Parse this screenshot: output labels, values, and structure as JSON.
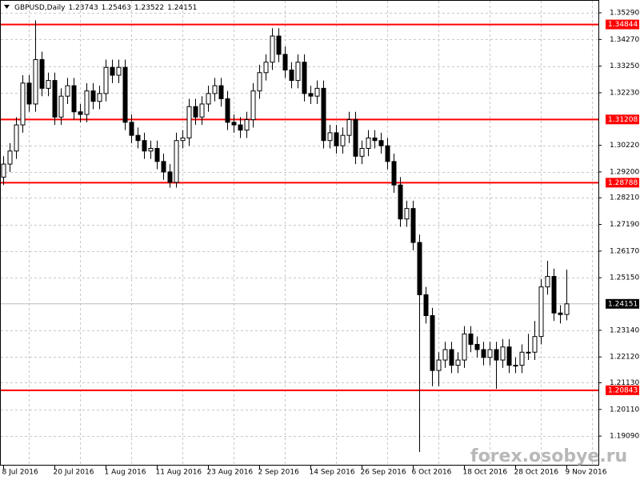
{
  "chart_data": {
    "type": "candlestick",
    "title": "GBPUSD,Daily",
    "watermark": "forex.osobye.ru",
    "categories": [
      "8 Jul 2016",
      null,
      null,
      null,
      null,
      null,
      null,
      null,
      "20 Jul 2016",
      null,
      null,
      null,
      null,
      null,
      null,
      null,
      "1 Aug 2016",
      null,
      null,
      null,
      null,
      null,
      null,
      null,
      "11 Aug 2016",
      null,
      null,
      null,
      null,
      null,
      null,
      null,
      "23 Aug 2016",
      null,
      null,
      null,
      null,
      null,
      null,
      null,
      "2 Sep 2016",
      null,
      null,
      null,
      null,
      null,
      null,
      null,
      "14 Sep 2016",
      null,
      null,
      null,
      null,
      null,
      null,
      null,
      "26 Sep 2016",
      null,
      null,
      null,
      null,
      null,
      null,
      null,
      "6 Oct 2016",
      null,
      null,
      null,
      null,
      null,
      null,
      null,
      "18 Oct 2016",
      null,
      null,
      null,
      null,
      null,
      null,
      null,
      "28 Oct 2016",
      null,
      null,
      null,
      null,
      null,
      null,
      null,
      "9 Nov 2016"
    ],
    "open": [
      1.29,
      1.295,
      1.3,
      1.31,
      1.326,
      1.318,
      1.335,
      1.324,
      1.327,
      1.313,
      1.321,
      1.325,
      1.315,
      1.314,
      1.323,
      1.319,
      1.322,
      1.332,
      1.329,
      1.332,
      1.311,
      1.306,
      1.304,
      1.3,
      1.301,
      1.296,
      1.292,
      1.288,
      1.304,
      1.305,
      1.317,
      1.313,
      1.318,
      1.322,
      1.325,
      1.32,
      1.311,
      1.31,
      1.308,
      1.312,
      1.323,
      1.33,
      1.334,
      1.344,
      1.337,
      1.331,
      1.327,
      1.334,
      1.322,
      1.321,
      1.324,
      1.304,
      1.307,
      1.302,
      1.306,
      1.312,
      1.298,
      1.301,
      1.305,
      1.304,
      1.302,
      1.296,
      1.287,
      1.274,
      1.278,
      1.265,
      1.245,
      1.237,
      1.216,
      1.22,
      1.224,
      1.218,
      1.22,
      1.23,
      1.226,
      1.224,
      1.221,
      1.224,
      1.22,
      1.225,
      1.218,
      1.218,
      1.223,
      1.223,
      1.229,
      1.248,
      1.252,
      1.238,
      1.23743
    ],
    "high": [
      1.298,
      1.303,
      1.313,
      1.329,
      1.329,
      1.35,
      1.338,
      1.33,
      1.33,
      1.324,
      1.328,
      1.328,
      1.318,
      1.326,
      1.326,
      1.325,
      1.335,
      1.335,
      1.335,
      1.335,
      1.314,
      1.309,
      1.307,
      1.304,
      1.304,
      1.299,
      1.295,
      1.307,
      1.308,
      1.32,
      1.32,
      1.321,
      1.325,
      1.328,
      1.328,
      1.323,
      1.314,
      1.313,
      1.315,
      1.326,
      1.333,
      1.337,
      1.347,
      1.347,
      1.34,
      1.334,
      1.337,
      1.337,
      1.325,
      1.327,
      1.327,
      1.31,
      1.31,
      1.309,
      1.315,
      1.315,
      1.304,
      1.308,
      1.308,
      1.307,
      1.305,
      1.299,
      1.29,
      1.281,
      1.281,
      1.268,
      1.248,
      1.24,
      1.223,
      1.227,
      1.227,
      1.223,
      1.233,
      1.233,
      1.229,
      1.227,
      1.227,
      1.227,
      1.228,
      1.228,
      1.221,
      1.226,
      1.23,
      1.235,
      1.251,
      1.258,
      1.255,
      1.241,
      1.25463
    ],
    "low": [
      1.287,
      1.292,
      1.297,
      1.307,
      1.315,
      1.315,
      1.321,
      1.321,
      1.31,
      1.31,
      1.318,
      1.312,
      1.311,
      1.311,
      1.316,
      1.316,
      1.319,
      1.326,
      1.326,
      1.308,
      1.303,
      1.301,
      1.297,
      1.297,
      1.293,
      1.289,
      1.286,
      1.286,
      1.301,
      1.302,
      1.31,
      1.31,
      1.315,
      1.319,
      1.317,
      1.308,
      1.307,
      1.305,
      1.305,
      1.309,
      1.32,
      1.327,
      1.331,
      1.334,
      1.328,
      1.324,
      1.324,
      1.319,
      1.318,
      1.318,
      1.301,
      1.301,
      1.299,
      1.299,
      1.303,
      1.295,
      1.295,
      1.298,
      1.301,
      1.299,
      1.293,
      1.284,
      1.271,
      1.271,
      1.262,
      1.1848,
      1.234,
      1.21,
      1.21,
      1.217,
      1.215,
      1.215,
      1.217,
      1.223,
      1.221,
      1.218,
      1.218,
      1.209,
      1.217,
      1.215,
      1.215,
      1.215,
      1.22,
      1.22,
      1.226,
      1.245,
      1.235,
      1.234,
      1.23522
    ],
    "close": [
      1.295,
      1.3,
      1.31,
      1.326,
      1.318,
      1.335,
      1.324,
      1.327,
      1.313,
      1.321,
      1.325,
      1.315,
      1.314,
      1.323,
      1.319,
      1.322,
      1.332,
      1.329,
      1.332,
      1.311,
      1.306,
      1.304,
      1.3,
      1.301,
      1.296,
      1.292,
      1.288,
      1.304,
      1.305,
      1.317,
      1.313,
      1.318,
      1.322,
      1.325,
      1.32,
      1.311,
      1.31,
      1.308,
      1.312,
      1.323,
      1.33,
      1.334,
      1.344,
      1.337,
      1.331,
      1.327,
      1.334,
      1.322,
      1.321,
      1.324,
      1.304,
      1.307,
      1.302,
      1.306,
      1.312,
      1.298,
      1.301,
      1.305,
      1.304,
      1.302,
      1.296,
      1.287,
      1.274,
      1.278,
      1.265,
      1.245,
      1.237,
      1.216,
      1.22,
      1.224,
      1.218,
      1.22,
      1.23,
      1.226,
      1.224,
      1.221,
      1.224,
      1.22,
      1.225,
      1.218,
      1.218,
      1.223,
      1.223,
      1.229,
      1.248,
      1.252,
      1.238,
      1.2374,
      1.24151
    ],
    "up_color": "#ffffff",
    "down_color": "#000000",
    "edge_color": "#000000",
    "hlines": [
      1.34844,
      1.31208,
      1.28788,
      1.20843
    ],
    "hline_color": "#ff0000",
    "ylim": [
      1.1796,
      1.3578
    ],
    "yticks": [
      {
        "value": 1.3529,
        "label": "1.35290"
      },
      {
        "value": 1.3427,
        "label": "1.34270"
      },
      {
        "value": 1.3325,
        "label": "1.33250"
      },
      {
        "value": 1.3223,
        "label": "1.32230"
      },
      {
        "value": 1.3022,
        "label": "1.30220"
      },
      {
        "value": 1.292,
        "label": "1.29200"
      },
      {
        "value": 1.2821,
        "label": "1.28210"
      },
      {
        "value": 1.2719,
        "label": "1.27190"
      },
      {
        "value": 1.2617,
        "label": "1.26170"
      },
      {
        "value": 1.2515,
        "label": "1.25150"
      },
      {
        "value": 1.2314,
        "label": "1.23140"
      },
      {
        "value": 1.2212,
        "label": "1.22120"
      },
      {
        "value": 1.2113,
        "label": "1.21130"
      },
      {
        "value": 1.2011,
        "label": "1.20110"
      },
      {
        "value": 1.1909,
        "label": "1.19090"
      }
    ],
    "grid": true
  }
}
